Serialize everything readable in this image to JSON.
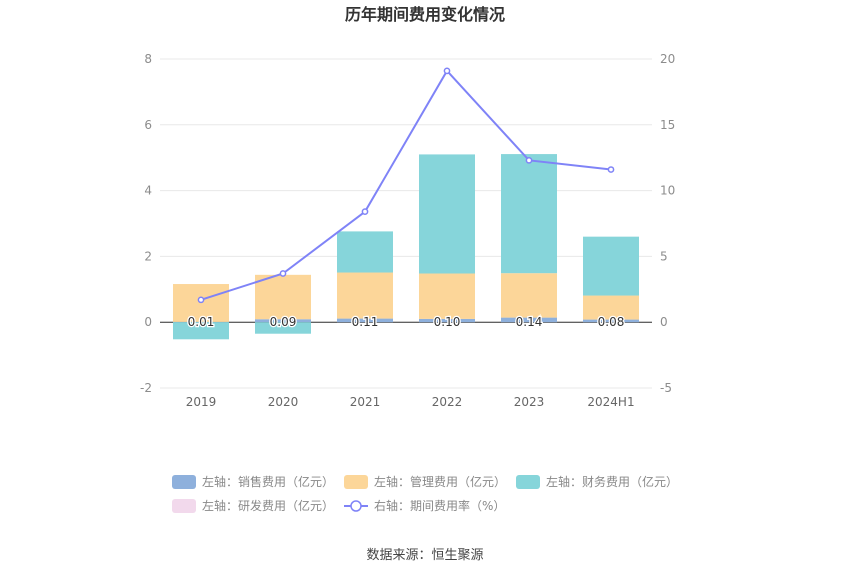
{
  "chart_data": {
    "type": "bar",
    "title": "历年期间费用变化情况",
    "categories": [
      "2019",
      "2020",
      "2021",
      "2022",
      "2023",
      "2024H1"
    ],
    "left_axis": {
      "ylim": [
        -2,
        8
      ],
      "ticks": [
        "-2",
        "0",
        "2",
        "4",
        "6",
        "8"
      ]
    },
    "right_axis": {
      "ylim": [
        -5,
        20
      ],
      "ticks": [
        "-5",
        "0",
        "5",
        "10",
        "15",
        "20"
      ]
    },
    "series": [
      {
        "name": "左轴：销售费用（亿元）",
        "axis": "left",
        "kind": "bar",
        "color": "#8eb0dc",
        "values": [
          0.01,
          0.09,
          0.11,
          0.1,
          0.14,
          0.08
        ],
        "labels": [
          "0.01",
          "0.09",
          "0.11",
          "0.10",
          "0.14",
          "0.08"
        ]
      },
      {
        "name": "左轴：管理费用（亿元）",
        "axis": "left",
        "kind": "bar",
        "color": "#fcd699",
        "values": [
          1.15,
          1.35,
          1.4,
          1.38,
          1.35,
          0.73
        ]
      },
      {
        "name": "左轴：财务费用（亿元）",
        "axis": "left",
        "kind": "bar",
        "color": "#86d5da",
        "values": [
          -0.52,
          -0.35,
          1.25,
          3.62,
          3.62,
          1.79
        ]
      },
      {
        "name": "左轴：研发费用（亿元）",
        "axis": "left",
        "kind": "bar",
        "color": "#f2d9ec",
        "values": [
          0,
          0,
          0,
          0,
          0,
          0
        ]
      },
      {
        "name": "右轴：期间费用率（%）",
        "axis": "right",
        "kind": "line",
        "color": "#7f83f7",
        "values": [
          1.7,
          3.7,
          8.4,
          19.1,
          12.3,
          11.6
        ]
      }
    ],
    "legend_position": "bottom",
    "grid": true
  },
  "source_text": "数据来源：恒生聚源"
}
